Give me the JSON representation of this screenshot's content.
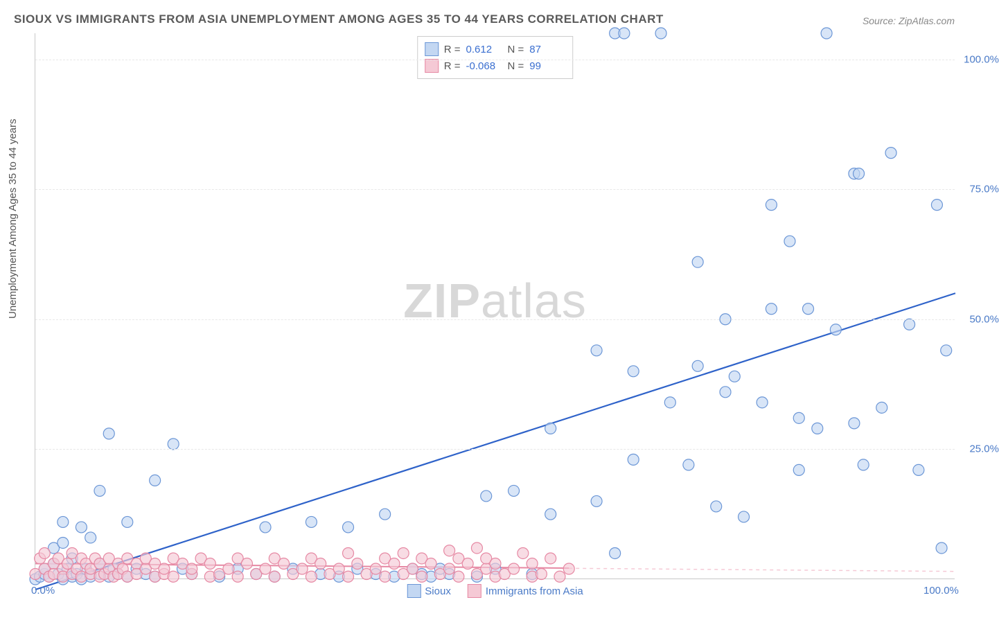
{
  "title": "SIOUX VS IMMIGRANTS FROM ASIA UNEMPLOYMENT AMONG AGES 35 TO 44 YEARS CORRELATION CHART",
  "source": "Source: ZipAtlas.com",
  "ylabel": "Unemployment Among Ages 35 to 44 years",
  "watermark": "ZIPatlas",
  "chart": {
    "type": "scatter",
    "xlim": [
      0,
      100
    ],
    "ylim": [
      0,
      105
    ],
    "xticks": [
      {
        "v": 0,
        "label": "0.0%"
      },
      {
        "v": 100,
        "label": "100.0%"
      }
    ],
    "yticks": [
      {
        "v": 25,
        "label": "25.0%"
      },
      {
        "v": 50,
        "label": "50.0%"
      },
      {
        "v": 75,
        "label": "75.0%"
      },
      {
        "v": 100,
        "label": "100.0%"
      }
    ],
    "background_color": "#ffffff",
    "grid_color": "#e8e8e8",
    "axis_color": "#c8c8c8",
    "tick_label_color": "#4a7ac7",
    "marker_radius": 8,
    "marker_stroke_width": 1.2,
    "series": [
      {
        "name": "Sioux",
        "fill": "#c3d7f2",
        "stroke": "#6b96d6",
        "fill_opacity": 0.65,
        "regression": {
          "y0": -2,
          "y1": 55,
          "color": "#2e62c9",
          "width": 2.2,
          "dash": "none"
        },
        "extension": {
          "x0": 0,
          "y0": -2,
          "x1": 100,
          "y1": 55,
          "color": "#c3d7f2",
          "dash": "6,6"
        },
        "stats": {
          "r_label": "R =",
          "r": "0.612",
          "n_label": "N =",
          "n": "87"
        },
        "points": [
          [
            0,
            0
          ],
          [
            0.5,
            0.5
          ],
          [
            1,
            1
          ],
          [
            1,
            2
          ],
          [
            1.5,
            0.5
          ],
          [
            2,
            3
          ],
          [
            2,
            6
          ],
          [
            2.5,
            1
          ],
          [
            3,
            0
          ],
          [
            3,
            7
          ],
          [
            3,
            11
          ],
          [
            3.5,
            2
          ],
          [
            4,
            0.5
          ],
          [
            4,
            4
          ],
          [
            4.5,
            1
          ],
          [
            5,
            0
          ],
          [
            5,
            10
          ],
          [
            5.5,
            2
          ],
          [
            6,
            0.5
          ],
          [
            6,
            8
          ],
          [
            7,
            1
          ],
          [
            7,
            3
          ],
          [
            7,
            17
          ],
          [
            8,
            0.5
          ],
          [
            8,
            28
          ],
          [
            8.5,
            2
          ],
          [
            9,
            1
          ],
          [
            10,
            11
          ],
          [
            10,
            0.5
          ],
          [
            11,
            2
          ],
          [
            12,
            1
          ],
          [
            13,
            19
          ],
          [
            13,
            0.5
          ],
          [
            15,
            26
          ],
          [
            16,
            2
          ],
          [
            17,
            1
          ],
          [
            20,
            0.5
          ],
          [
            22,
            2
          ],
          [
            24,
            1
          ],
          [
            25,
            10
          ],
          [
            26,
            0.5
          ],
          [
            28,
            2
          ],
          [
            30,
            11
          ],
          [
            31,
            1
          ],
          [
            33,
            0.5
          ],
          [
            34,
            10
          ],
          [
            35,
            2
          ],
          [
            37,
            1
          ],
          [
            38,
            12.5
          ],
          [
            39,
            0.5
          ],
          [
            41,
            2
          ],
          [
            42,
            1
          ],
          [
            43,
            0.5
          ],
          [
            44,
            2
          ],
          [
            45,
            1
          ],
          [
            48,
            0.5
          ],
          [
            49,
            16
          ],
          [
            50,
            2
          ],
          [
            52,
            17
          ],
          [
            54,
            1
          ],
          [
            56,
            12.5
          ],
          [
            56,
            29
          ],
          [
            61,
            44
          ],
          [
            61,
            15
          ],
          [
            63,
            5
          ],
          [
            63,
            105
          ],
          [
            64,
            105
          ],
          [
            65,
            23
          ],
          [
            65,
            40
          ],
          [
            68,
            105
          ],
          [
            69,
            34
          ],
          [
            71,
            22
          ],
          [
            72,
            41
          ],
          [
            72,
            61
          ],
          [
            74,
            14
          ],
          [
            75,
            50
          ],
          [
            75,
            36
          ],
          [
            76,
            39
          ],
          [
            77,
            12
          ],
          [
            79,
            34
          ],
          [
            80,
            52
          ],
          [
            80,
            72
          ],
          [
            82,
            65
          ],
          [
            83,
            21
          ],
          [
            83,
            31
          ],
          [
            84,
            52
          ],
          [
            85,
            29
          ],
          [
            86,
            105
          ],
          [
            87,
            48
          ],
          [
            89,
            30
          ],
          [
            89,
            78
          ],
          [
            89.5,
            78
          ],
          [
            90,
            22
          ],
          [
            92,
            33
          ],
          [
            93,
            82
          ],
          [
            95,
            49
          ],
          [
            96,
            21
          ],
          [
            98,
            72
          ],
          [
            98.5,
            6
          ],
          [
            99,
            44
          ]
        ]
      },
      {
        "name": "Immigrants from Asia",
        "fill": "#f5c9d5",
        "stroke": "#e688a3",
        "fill_opacity": 0.65,
        "regression": {
          "y0": 3,
          "y1": 1.5,
          "color": "#e688a3",
          "width": 2,
          "dash": "none"
        },
        "extension": {
          "x0": 58,
          "y0": 2.1,
          "x1": 100,
          "y1": 1.5,
          "color": "#f5c9d5",
          "dash": "5,5"
        },
        "stats": {
          "r_label": "R =",
          "r": "-0.068",
          "n_label": "N =",
          "n": "99"
        },
        "points": [
          [
            0,
            1
          ],
          [
            0.5,
            4
          ],
          [
            1,
            2
          ],
          [
            1,
            5
          ],
          [
            1.5,
            0.5
          ],
          [
            2,
            3
          ],
          [
            2,
            1
          ],
          [
            2.5,
            4
          ],
          [
            3,
            2
          ],
          [
            3,
            0.5
          ],
          [
            3.5,
            3
          ],
          [
            4,
            1
          ],
          [
            4,
            5
          ],
          [
            4.5,
            2
          ],
          [
            5,
            4
          ],
          [
            5,
            0.5
          ],
          [
            5.5,
            3
          ],
          [
            6,
            1
          ],
          [
            6,
            2
          ],
          [
            6.5,
            4
          ],
          [
            7,
            0.5
          ],
          [
            7,
            3
          ],
          [
            7.5,
            1
          ],
          [
            8,
            2
          ],
          [
            8,
            4
          ],
          [
            8.5,
            0.5
          ],
          [
            9,
            3
          ],
          [
            9,
            1
          ],
          [
            9.5,
            2
          ],
          [
            10,
            4
          ],
          [
            10,
            0.5
          ],
          [
            11,
            3
          ],
          [
            11,
            1
          ],
          [
            12,
            2
          ],
          [
            12,
            4
          ],
          [
            13,
            0.5
          ],
          [
            13,
            3
          ],
          [
            14,
            1
          ],
          [
            14,
            2
          ],
          [
            15,
            4
          ],
          [
            15,
            0.5
          ],
          [
            16,
            3
          ],
          [
            17,
            1
          ],
          [
            17,
            2
          ],
          [
            18,
            4
          ],
          [
            19,
            0.5
          ],
          [
            19,
            3
          ],
          [
            20,
            1
          ],
          [
            21,
            2
          ],
          [
            22,
            4
          ],
          [
            22,
            0.5
          ],
          [
            23,
            3
          ],
          [
            24,
            1
          ],
          [
            25,
            2
          ],
          [
            26,
            4
          ],
          [
            26,
            0.5
          ],
          [
            27,
            3
          ],
          [
            28,
            1
          ],
          [
            29,
            2
          ],
          [
            30,
            4
          ],
          [
            30,
            0.5
          ],
          [
            31,
            3
          ],
          [
            32,
            1
          ],
          [
            33,
            2
          ],
          [
            34,
            5
          ],
          [
            34,
            0.5
          ],
          [
            35,
            3
          ],
          [
            36,
            1
          ],
          [
            37,
            2
          ],
          [
            38,
            4
          ],
          [
            38,
            0.5
          ],
          [
            39,
            3
          ],
          [
            40,
            1
          ],
          [
            40,
            5
          ],
          [
            41,
            2
          ],
          [
            42,
            4
          ],
          [
            42,
            0.5
          ],
          [
            43,
            3
          ],
          [
            44,
            1
          ],
          [
            45,
            2
          ],
          [
            45,
            5.5
          ],
          [
            46,
            0.5
          ],
          [
            46,
            4
          ],
          [
            47,
            3
          ],
          [
            48,
            1
          ],
          [
            48,
            6
          ],
          [
            49,
            2
          ],
          [
            49,
            4
          ],
          [
            50,
            0.5
          ],
          [
            50,
            3
          ],
          [
            51,
            1
          ],
          [
            52,
            2
          ],
          [
            53,
            5
          ],
          [
            54,
            0.5
          ],
          [
            54,
            3
          ],
          [
            55,
            1
          ],
          [
            56,
            4
          ],
          [
            57,
            0.5
          ],
          [
            58,
            2
          ]
        ]
      }
    ],
    "bottom_legend": [
      {
        "name": "Sioux",
        "fill": "#c3d7f2",
        "stroke": "#6b96d6"
      },
      {
        "name": "Immigrants from Asia",
        "fill": "#f5c9d5",
        "stroke": "#e688a3"
      }
    ]
  }
}
